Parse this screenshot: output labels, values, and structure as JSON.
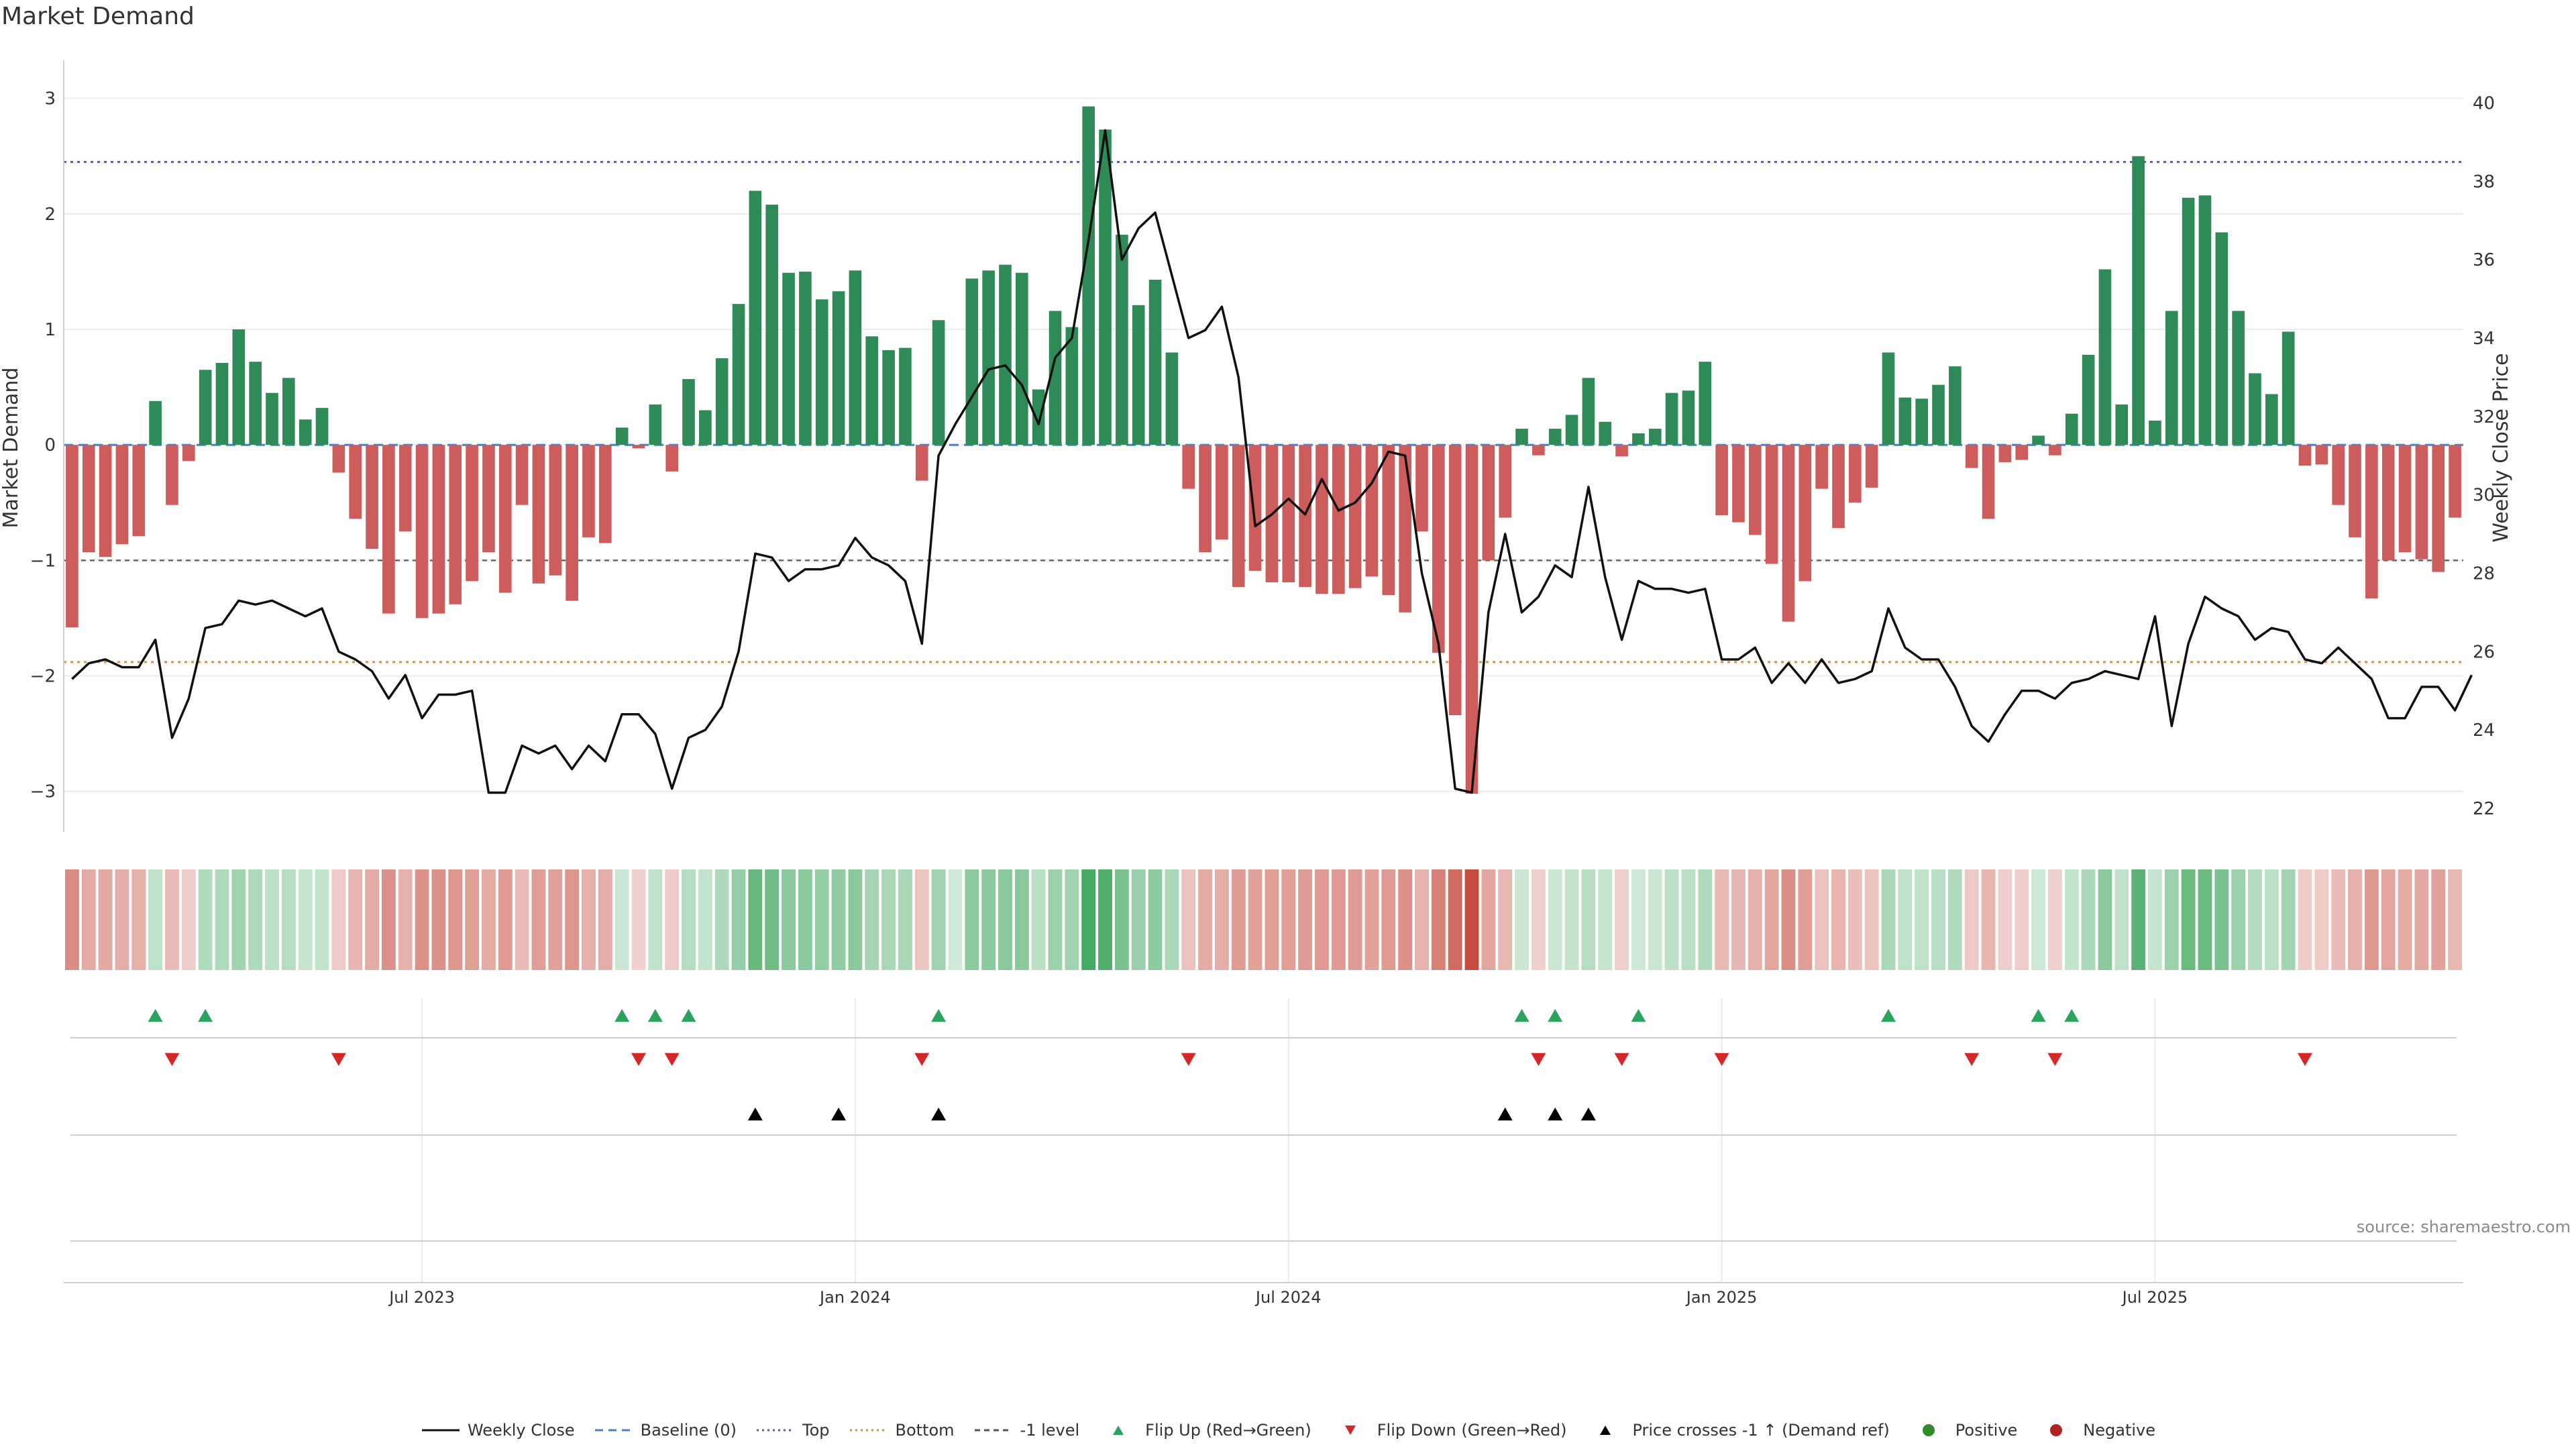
{
  "chart_data": {
    "title": "Market Demand",
    "type": "bar+line",
    "ylabel": "Market Demand",
    "y2label": "Weekly Close Price",
    "ylim": [
      -3.35,
      3.3
    ],
    "y2lim": [
      21.4,
      41.0
    ],
    "yticks": [
      3,
      2,
      1,
      0,
      -1,
      -2,
      -3
    ],
    "y2ticks": [
      40,
      38,
      36,
      34,
      32,
      30,
      28,
      26,
      24,
      22
    ],
    "xtick_labels": [
      "Jul 2023",
      "Jan 2024",
      "Jul 2024",
      "Jan 2025",
      "Jul 2025"
    ],
    "xtick_weeks": [
      21,
      47,
      73,
      99,
      125
    ],
    "reference_lines": {
      "top": 2.45,
      "bottom": -1.88,
      "minus_one": -1.0
    },
    "demand": [
      -1.58,
      -0.93,
      -0.97,
      -0.86,
      -0.79,
      0.38,
      -0.52,
      -0.14,
      0.65,
      0.71,
      1.0,
      0.72,
      0.45,
      0.58,
      0.22,
      0.32,
      -0.24,
      -0.64,
      -0.9,
      -1.46,
      -0.75,
      -1.5,
      -1.46,
      -1.38,
      -1.18,
      -0.93,
      -1.28,
      -0.52,
      -1.2,
      -1.13,
      -1.35,
      -0.8,
      -0.85,
      0.15,
      -0.03,
      0.35,
      -0.23,
      0.57,
      0.3,
      0.75,
      1.22,
      2.2,
      2.08,
      1.49,
      1.5,
      1.26,
      1.33,
      1.51,
      0.94,
      0.82,
      0.84,
      -0.31,
      1.08,
      0.0,
      1.44,
      1.51,
      1.56,
      1.49,
      0.48,
      1.16,
      1.02,
      2.93,
      2.73,
      1.82,
      1.21,
      1.43,
      0.8,
      -0.38,
      -0.93,
      -0.82,
      -1.23,
      -1.09,
      -1.19,
      -1.19,
      -1.23,
      -1.29,
      -1.29,
      -1.24,
      -1.14,
      -1.3,
      -1.45,
      -0.75,
      -1.8,
      -2.34,
      -3.02,
      -1.0,
      -0.63,
      0.14,
      -0.09,
      0.14,
      0.26,
      0.58,
      0.2,
      -0.1,
      0.1,
      0.14,
      0.45,
      0.47,
      0.72,
      -0.61,
      -0.67,
      -0.78,
      -1.03,
      -1.53,
      -1.18,
      -0.38,
      -0.72,
      -0.5,
      -0.37,
      0.8,
      0.41,
      0.4,
      0.52,
      0.68,
      -0.2,
      -0.64,
      -0.15,
      -0.13,
      0.08,
      -0.09,
      0.27,
      0.78,
      1.52,
      0.35,
      2.5,
      0.21,
      1.16,
      2.14,
      2.16,
      1.84,
      1.16,
      0.62,
      0.44,
      0.98,
      -0.18,
      -0.17,
      -0.52,
      -0.8,
      -1.33,
      -1.0,
      -0.93,
      -0.99,
      -1.1,
      -0.63
    ],
    "weekly_close": [
      25.3,
      25.7,
      25.8,
      25.6,
      25.6,
      26.3,
      23.8,
      24.8,
      26.6,
      26.7,
      27.3,
      27.2,
      27.3,
      27.1,
      26.9,
      27.1,
      26.0,
      25.8,
      25.5,
      24.8,
      25.4,
      24.3,
      24.9,
      24.9,
      25.0,
      22.4,
      22.4,
      23.6,
      23.4,
      23.6,
      23.0,
      23.6,
      23.2,
      24.4,
      24.4,
      23.9,
      22.5,
      23.8,
      24.0,
      24.6,
      26.0,
      28.5,
      28.4,
      27.8,
      28.1,
      28.1,
      28.2,
      28.9,
      28.4,
      28.2,
      27.8,
      26.2,
      31.0,
      31.8,
      32.5,
      33.2,
      33.3,
      32.8,
      31.8,
      33.5,
      34.0,
      36.5,
      39.3,
      36.0,
      36.8,
      37.2,
      35.6,
      34.0,
      34.2,
      34.8,
      33.0,
      29.2,
      29.5,
      29.9,
      29.5,
      30.4,
      29.6,
      29.8,
      30.3,
      31.1,
      31.0,
      28.0,
      26.2,
      22.5,
      22.4,
      27.0,
      29.0,
      27.0,
      27.4,
      28.2,
      27.9,
      30.2,
      27.9,
      26.3,
      27.8,
      27.6,
      27.6,
      27.5,
      27.6,
      25.8,
      25.8,
      26.1,
      25.2,
      25.7,
      25.2,
      25.8,
      25.2,
      25.3,
      25.5,
      27.1,
      26.1,
      25.8,
      25.8,
      25.1,
      24.1,
      23.7,
      24.4,
      25.0,
      25.0,
      24.8,
      25.2,
      25.3,
      25.5,
      25.4,
      25.3,
      26.9,
      24.1,
      26.2,
      27.4,
      27.1,
      26.9,
      26.3,
      26.6,
      26.5,
      25.8,
      25.7,
      26.1,
      25.7,
      25.3,
      24.3,
      24.3,
      25.1,
      25.1,
      24.5,
      25.4
    ],
    "strip_band": {
      "label": "demand heat strip"
    },
    "flip_up_weeks": [
      5,
      8,
      33,
      35,
      37,
      52,
      87,
      89,
      94,
      109,
      118,
      120
    ],
    "flip_down_weeks": [
      6,
      16,
      34,
      36,
      51,
      67,
      88,
      93,
      99,
      114,
      119,
      134
    ],
    "price_cross_weeks": [
      41,
      46,
      52,
      86,
      89,
      91
    ],
    "legend": [
      {
        "key": "weekly_close",
        "label": "Weekly Close",
        "color": "#111111",
        "style": "line"
      },
      {
        "key": "baseline",
        "label": "Baseline (0)",
        "color": "#4a7fc4",
        "style": "dashed"
      },
      {
        "key": "top",
        "label": "Top",
        "color": "#5a5aa8",
        "style": "dotted"
      },
      {
        "key": "bottom",
        "label": "Bottom",
        "color": "#e0922e",
        "style": "dotted"
      },
      {
        "key": "minus_one",
        "label": "-1 level",
        "color": "#555555",
        "style": "dotted"
      },
      {
        "key": "flip_up",
        "label": "Flip Up (Red→Green)",
        "color": "#2ca25f",
        "style": "tri-up"
      },
      {
        "key": "flip_down",
        "label": "Flip Down (Green→Red)",
        "color": "#d62728",
        "style": "tri-down"
      },
      {
        "key": "price_cross",
        "label": "Price crosses -1 ↑ (Demand ref)",
        "color": "#000000",
        "style": "tri-up"
      },
      {
        "key": "positive",
        "label": "Positive",
        "color": "#2e8b2e",
        "style": "dot"
      },
      {
        "key": "negative",
        "label": "Negative",
        "color": "#b22222",
        "style": "dot"
      }
    ],
    "colors": {
      "pos_bar": "#2e8b57",
      "neg_bar": "#cd5c5c",
      "strip_pos": "#2e9e4f",
      "strip_neg": "#c0392b"
    }
  },
  "source": "source: sharemaestro.com"
}
